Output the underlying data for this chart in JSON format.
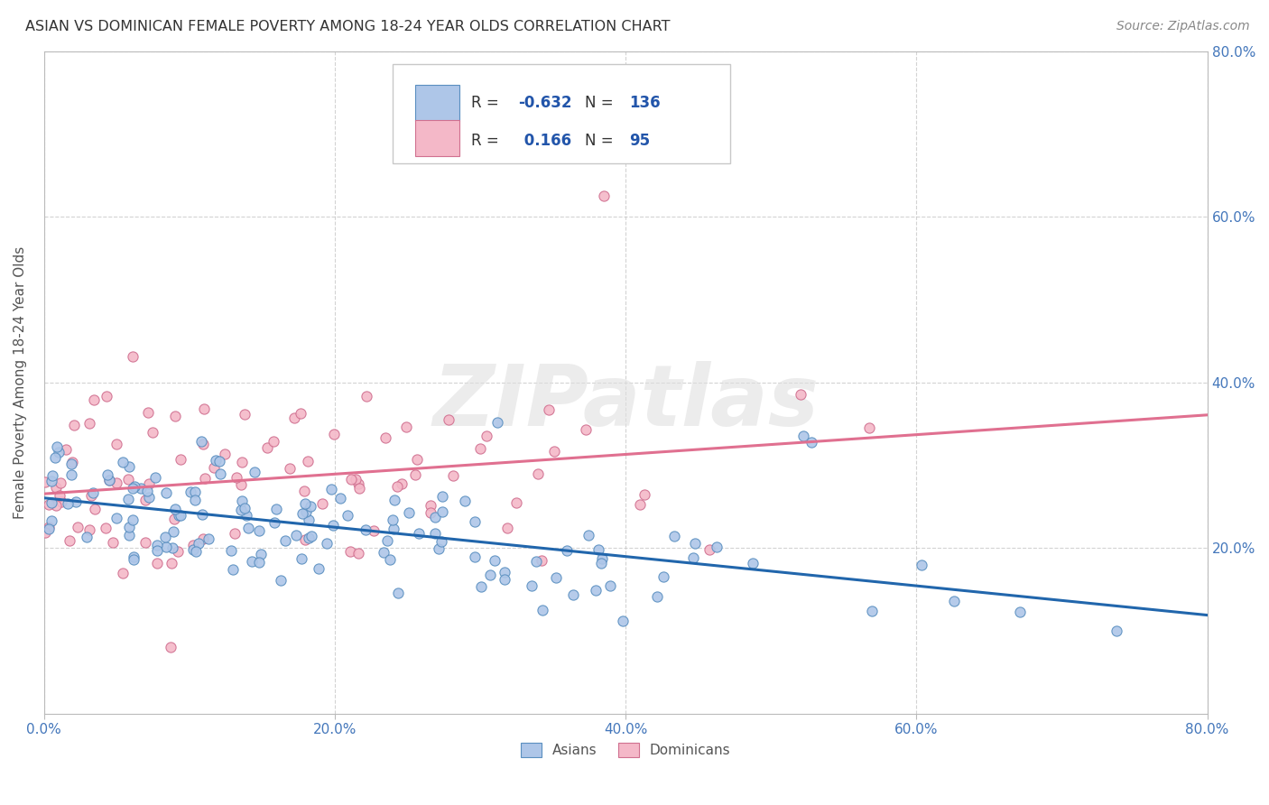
{
  "title": "ASIAN VS DOMINICAN FEMALE POVERTY AMONG 18-24 YEAR OLDS CORRELATION CHART",
  "source": "Source: ZipAtlas.com",
  "ylabel": "Female Poverty Among 18-24 Year Olds",
  "xlim": [
    0.0,
    0.8
  ],
  "ylim": [
    0.0,
    0.8
  ],
  "xticks": [
    0.0,
    0.2,
    0.4,
    0.6,
    0.8
  ],
  "yticks": [
    0.2,
    0.4,
    0.6,
    0.8
  ],
  "xticklabels": [
    "0.0%",
    "20.0%",
    "40.0%",
    "60.0%",
    "80.0%"
  ],
  "right_yticklabels": [
    "20.0%",
    "40.0%",
    "60.0%",
    "80.0%"
  ],
  "asian_fill_color": "#aec6e8",
  "asian_edge_color": "#5a8fc0",
  "dominican_fill_color": "#f4b8c8",
  "dominican_edge_color": "#d07090",
  "asian_line_color": "#2166ac",
  "dominican_line_color": "#e07090",
  "R_asian": -0.632,
  "N_asian": 136,
  "R_dominican": 0.166,
  "N_dominican": 95,
  "background_color": "#ffffff",
  "grid_color": "#c8c8c8",
  "watermark_text": "ZIPatlas",
  "title_color": "#333333",
  "tick_label_color": "#4477bb",
  "legend_r_color": "#e05090",
  "legend_n_color": "#333333",
  "legend_rval_color": "#2255aa",
  "source_color": "#888888",
  "ylabel_color": "#555555"
}
